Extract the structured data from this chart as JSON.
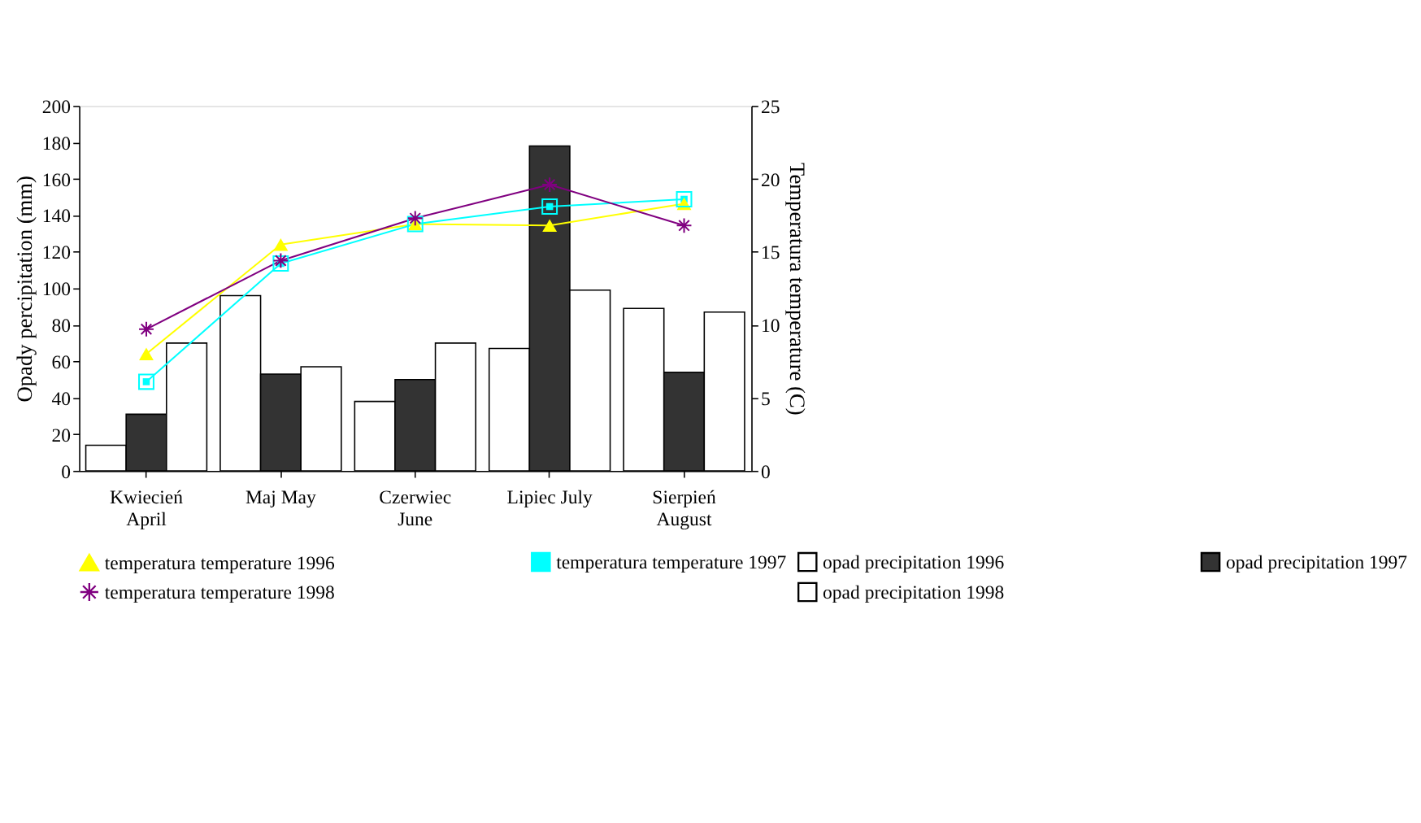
{
  "chart_data": {
    "type": "bar",
    "categories": [
      "Kwiecień\nApril",
      "Maj     May",
      "Czerwiec\nJune",
      "Lipiec   July",
      "Sierpień\nAugust"
    ],
    "ylabel": "Opady percipitation (mm)",
    "y2label": "Temperatura temperature (C)",
    "ylim": [
      0,
      200
    ],
    "yticks": [
      0,
      20,
      40,
      60,
      80,
      100,
      120,
      140,
      160,
      180,
      200
    ],
    "y2lim": [
      0,
      25
    ],
    "y2ticks": [
      0,
      5,
      10,
      15,
      20,
      25
    ],
    "grid": false,
    "legend": "bottom",
    "series": [
      {
        "name": "opad precipitation 1996",
        "color": "#ffffff",
        "values": [
          14,
          96,
          38,
          67,
          89
        ]
      },
      {
        "name": "opad precipitation 1997",
        "color": "#333333",
        "values": [
          31,
          53,
          50,
          178,
          54
        ]
      },
      {
        "name": "opad precipitation 1998",
        "color": "#ffffff",
        "values": [
          70,
          57,
          70,
          99,
          87
        ]
      },
      {
        "name": "temperatura temperature 1996",
        "type": "line",
        "axis": "y2",
        "marker": "triangle",
        "color": "#ffff00",
        "values": [
          8.0,
          15.5,
          16.9,
          16.8,
          18.3
        ]
      },
      {
        "name": "temperatura temperature 1997",
        "type": "line",
        "axis": "y2",
        "marker": "square",
        "color": "#00ffff",
        "values": [
          6.1,
          14.2,
          16.9,
          18.1,
          18.6
        ]
      },
      {
        "name": "temperatura temperature 1998",
        "type": "line",
        "axis": "y2",
        "marker": "cross",
        "color": "#800080",
        "values": [
          9.7,
          14.4,
          17.3,
          19.6,
          16.8
        ]
      }
    ]
  }
}
